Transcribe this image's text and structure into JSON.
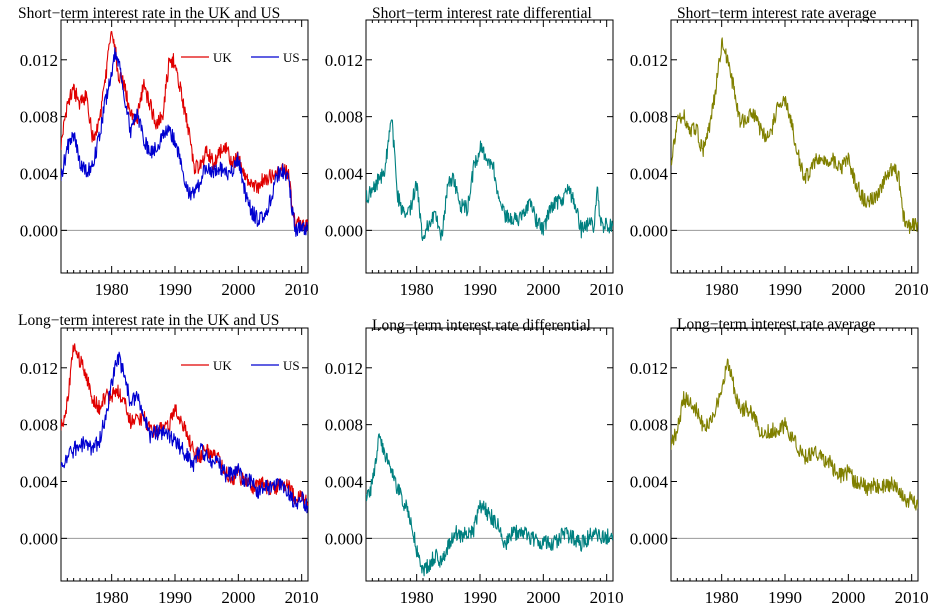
{
  "figure": {
    "panels": [
      {
        "id": "short-levels",
        "title": "Short−term interest rate in the UK and US"
      },
      {
        "id": "short-diff",
        "title": "Short−term interest rate differential"
      },
      {
        "id": "short-avg",
        "title": "Short−term interest rate average"
      },
      {
        "id": "long-levels",
        "title": "Long−term interest rate in the UK and US"
      },
      {
        "id": "long-diff",
        "title": "Long−term interest rate differential"
      },
      {
        "id": "long-avg",
        "title": "Long−term interest rate average"
      }
    ],
    "colors": {
      "uk": "#e00000",
      "us": "#0000d0",
      "diff": "#008080",
      "avg": "#808000",
      "zero": "#999999"
    }
  },
  "chart_data": [
    {
      "type": "line",
      "title": "Short−term interest rate in the UK and US",
      "xlim": [
        1972,
        2011
      ],
      "ylim": [
        -0.003,
        0.0148
      ],
      "xticks": [
        1980,
        1990,
        2000,
        2010
      ],
      "yticks": [
        0.0,
        0.004,
        0.008,
        0.012
      ],
      "ytick_labels": [
        "0.000",
        "0.004",
        "0.008",
        "0.012"
      ],
      "legend": "top-right",
      "series": [
        {
          "name": "UK",
          "x": [
            1972,
            1973,
            1974,
            1975,
            1976,
            1977,
            1978,
            1979,
            1980,
            1980.5,
            1981,
            1982,
            1983,
            1984,
            1985,
            1986,
            1987,
            1988,
            1989,
            1990,
            1991,
            1992,
            1993,
            1994,
            1995,
            1996,
            1997,
            1998,
            1999,
            2000,
            2001,
            2002,
            2003,
            2004,
            2005,
            2006,
            2007,
            2008,
            2008.5,
            2009,
            2010,
            2011
          ],
          "y": [
            0.006,
            0.009,
            0.0098,
            0.009,
            0.0095,
            0.0065,
            0.0075,
            0.0105,
            0.0143,
            0.013,
            0.011,
            0.0102,
            0.008,
            0.0078,
            0.0102,
            0.0089,
            0.0075,
            0.008,
            0.0116,
            0.012,
            0.0095,
            0.0075,
            0.0045,
            0.0045,
            0.0055,
            0.0048,
            0.0055,
            0.0058,
            0.0047,
            0.0051,
            0.0041,
            0.0033,
            0.003,
            0.0036,
            0.0038,
            0.0038,
            0.0047,
            0.0038,
            0.0015,
            0.0005,
            0.0004,
            0.0004
          ]
        },
        {
          "name": "US",
          "x": [
            1972,
            1973,
            1974,
            1975,
            1976,
            1977,
            1978,
            1979,
            1980,
            1980.5,
            1981,
            1982,
            1983,
            1984,
            1985,
            1986,
            1987,
            1988,
            1989,
            1990,
            1991,
            1992,
            1993,
            1994,
            1995,
            1996,
            1997,
            1998,
            1999,
            2000,
            2001,
            2002,
            2003,
            2004,
            2005,
            2006,
            2007,
            2008,
            2008.5,
            2009,
            2010,
            2011
          ],
          "y": [
            0.0038,
            0.0058,
            0.0068,
            0.0048,
            0.0042,
            0.0045,
            0.0065,
            0.009,
            0.011,
            0.0125,
            0.012,
            0.0095,
            0.007,
            0.0082,
            0.0065,
            0.0055,
            0.0058,
            0.0065,
            0.0072,
            0.0062,
            0.0045,
            0.0028,
            0.0025,
            0.0035,
            0.0046,
            0.0042,
            0.0043,
            0.004,
            0.0042,
            0.005,
            0.0028,
            0.0014,
            0.0008,
            0.0008,
            0.002,
            0.0038,
            0.0042,
            0.0035,
            0.0015,
            0.0001,
            0.0001,
            0.0001
          ]
        }
      ]
    },
    {
      "type": "line",
      "title": "Short−term interest rate differential",
      "xlim": [
        1972,
        2011
      ],
      "ylim": [
        -0.003,
        0.0148
      ],
      "xticks": [
        1980,
        1990,
        2000,
        2010
      ],
      "yticks": [
        0.0,
        0.004,
        0.008,
        0.012
      ],
      "ytick_labels": [
        "0.000",
        "0.004",
        "0.008",
        "0.012"
      ],
      "series": [
        {
          "name": "",
          "x": [
            1972,
            1973,
            1974,
            1975,
            1976,
            1977,
            1978,
            1979,
            1980,
            1981,
            1982,
            1983,
            1984,
            1985,
            1986,
            1987,
            1988,
            1989,
            1990,
            1991,
            1992,
            1993,
            1994,
            1995,
            1996,
            1997,
            1998,
            1999,
            2000,
            2001,
            2002,
            2003,
            2004,
            2005,
            2006,
            2007,
            2008,
            2008.5,
            2009,
            2010,
            2011
          ],
          "y": [
            0.0022,
            0.003,
            0.0035,
            0.0042,
            0.0082,
            0.0025,
            0.001,
            0.0015,
            0.0033,
            -0.001,
            0.0007,
            0.001,
            -0.0005,
            0.0037,
            0.0034,
            0.0017,
            0.0015,
            0.0044,
            0.0058,
            0.005,
            0.0047,
            0.002,
            0.001,
            0.0009,
            0.0006,
            0.0012,
            0.0018,
            0.0005,
            0.0001,
            0.0013,
            0.0019,
            0.0022,
            0.0028,
            0.0018,
            0.0,
            0.0005,
            0.0003,
            0.0032,
            0.0004,
            0.0003,
            0.0003
          ]
        }
      ]
    },
    {
      "type": "line",
      "title": "Short−term interest rate average",
      "xlim": [
        1972,
        2011
      ],
      "ylim": [
        -0.003,
        0.0148
      ],
      "xticks": [
        1980,
        1990,
        2000,
        2010
      ],
      "yticks": [
        0.0,
        0.004,
        0.008,
        0.012
      ],
      "ytick_labels": [
        "0.000",
        "0.004",
        "0.008",
        "0.012"
      ],
      "series": [
        {
          "name": "",
          "x": [
            1972,
            1973,
            1974,
            1975,
            1976,
            1977,
            1978,
            1979,
            1980,
            1981,
            1982,
            1983,
            1984,
            1985,
            1986,
            1987,
            1988,
            1989,
            1990,
            1991,
            1992,
            1993,
            1994,
            1995,
            1996,
            1997,
            1998,
            1999,
            2000,
            2001,
            2002,
            2003,
            2004,
            2005,
            2006,
            2007,
            2008,
            2008.5,
            2009,
            2010,
            2011
          ],
          "y": [
            0.0048,
            0.0078,
            0.0082,
            0.0068,
            0.0072,
            0.0055,
            0.007,
            0.0098,
            0.0132,
            0.0118,
            0.0098,
            0.0075,
            0.008,
            0.0082,
            0.0072,
            0.0066,
            0.0072,
            0.0092,
            0.0092,
            0.0075,
            0.0055,
            0.0036,
            0.0042,
            0.005,
            0.0047,
            0.0049,
            0.0049,
            0.0044,
            0.0051,
            0.0036,
            0.0025,
            0.0019,
            0.0022,
            0.0029,
            0.0038,
            0.0044,
            0.0037,
            0.0015,
            0.0003,
            0.0003,
            0.0004
          ]
        }
      ]
    },
    {
      "type": "line",
      "title": "Long−term interest rate in the UK and US",
      "xlim": [
        1972,
        2011
      ],
      "ylim": [
        -0.003,
        0.0148
      ],
      "xticks": [
        1980,
        1990,
        2000,
        2010
      ],
      "yticks": [
        0.0,
        0.004,
        0.008,
        0.012
      ],
      "ytick_labels": [
        "0.000",
        "0.004",
        "0.008",
        "0.012"
      ],
      "legend": "top-right",
      "series": [
        {
          "name": "UK",
          "x": [
            1972,
            1973,
            1974,
            1975,
            1976,
            1977,
            1978,
            1979,
            1980,
            1981,
            1982,
            1983,
            1984,
            1985,
            1986,
            1987,
            1988,
            1989,
            1990,
            1991,
            1992,
            1993,
            1994,
            1995,
            1996,
            1997,
            1998,
            1999,
            2000,
            2001,
            2002,
            2003,
            2004,
            2005,
            2006,
            2007,
            2008,
            2009,
            2010,
            2011
          ],
          "y": [
            0.0078,
            0.0095,
            0.0135,
            0.0125,
            0.0115,
            0.0098,
            0.0092,
            0.01,
            0.01,
            0.0105,
            0.0095,
            0.0082,
            0.0082,
            0.0085,
            0.0078,
            0.0075,
            0.0078,
            0.0078,
            0.0092,
            0.0082,
            0.0072,
            0.006,
            0.0058,
            0.0062,
            0.0058,
            0.0055,
            0.0046,
            0.0042,
            0.0046,
            0.0038,
            0.0037,
            0.0036,
            0.0038,
            0.0034,
            0.0035,
            0.0038,
            0.0036,
            0.0027,
            0.0029,
            0.0025
          ]
        },
        {
          "name": "US",
          "x": [
            1972,
            1973,
            1974,
            1975,
            1976,
            1977,
            1978,
            1979,
            1980,
            1981,
            1982,
            1983,
            1984,
            1985,
            1986,
            1987,
            1988,
            1989,
            1990,
            1991,
            1992,
            1993,
            1994,
            1995,
            1996,
            1997,
            1998,
            1999,
            2000,
            2001,
            2002,
            2003,
            2004,
            2005,
            2006,
            2007,
            2008,
            2009,
            2010,
            2011
          ],
          "y": [
            0.0052,
            0.0057,
            0.0062,
            0.0067,
            0.0065,
            0.0063,
            0.0068,
            0.0085,
            0.0108,
            0.0128,
            0.0115,
            0.0095,
            0.0102,
            0.0088,
            0.0072,
            0.0075,
            0.0074,
            0.0072,
            0.0068,
            0.0063,
            0.0058,
            0.0052,
            0.0062,
            0.0058,
            0.0054,
            0.0052,
            0.0045,
            0.0045,
            0.0048,
            0.0041,
            0.004,
            0.0033,
            0.0036,
            0.0035,
            0.0039,
            0.0038,
            0.0031,
            0.0025,
            0.0028,
            0.0022
          ]
        }
      ]
    },
    {
      "type": "line",
      "title": "Long−term interest rate differential",
      "xlim": [
        1972,
        2011
      ],
      "ylim": [
        -0.003,
        0.0148
      ],
      "xticks": [
        1980,
        1990,
        2000,
        2010
      ],
      "yticks": [
        0.0,
        0.004,
        0.008,
        0.012
      ],
      "ytick_labels": [
        "0.000",
        "0.004",
        "0.008",
        "0.012"
      ],
      "series": [
        {
          "name": "",
          "x": [
            1972,
            1973,
            1974,
            1975,
            1976,
            1977,
            1978,
            1979,
            1980,
            1981,
            1982,
            1983,
            1984,
            1985,
            1986,
            1987,
            1988,
            1989,
            1990,
            1991,
            1992,
            1993,
            1994,
            1995,
            1996,
            1997,
            1998,
            1999,
            2000,
            2001,
            2002,
            2003,
            2004,
            2005,
            2006,
            2007,
            2008,
            2009,
            2010,
            2011
          ],
          "y": [
            0.0026,
            0.0038,
            0.0072,
            0.0058,
            0.0048,
            0.0035,
            0.0025,
            0.0015,
            -0.0008,
            -0.0022,
            -0.0018,
            -0.0012,
            -0.0018,
            -0.0005,
            0.0005,
            0.0,
            0.0005,
            0.0006,
            0.0024,
            0.0019,
            0.0014,
            0.0008,
            -0.0004,
            0.0004,
            0.0004,
            0.0003,
            0.0001,
            -0.0003,
            -0.0002,
            -0.0003,
            -0.0003,
            0.0003,
            0.0002,
            -0.0001,
            -0.0004,
            0.0,
            0.0005,
            0.0002,
            0.0001,
            0.0003
          ]
        }
      ]
    },
    {
      "type": "line",
      "title": "Long−term interest rate average",
      "xlim": [
        1972,
        2011
      ],
      "ylim": [
        -0.003,
        0.0148
      ],
      "xticks": [
        1980,
        1990,
        2000,
        2010
      ],
      "yticks": [
        0.0,
        0.004,
        0.008,
        0.012
      ],
      "ytick_labels": [
        "0.000",
        "0.004",
        "0.008",
        "0.012"
      ],
      "series": [
        {
          "name": "",
          "x": [
            1972,
            1973,
            1974,
            1975,
            1976,
            1977,
            1978,
            1979,
            1980,
            1981,
            1982,
            1983,
            1984,
            1985,
            1986,
            1987,
            1988,
            1989,
            1990,
            1991,
            1992,
            1993,
            1994,
            1995,
            1996,
            1997,
            1998,
            1999,
            2000,
            2001,
            2002,
            2003,
            2004,
            2005,
            2006,
            2007,
            2008,
            2009,
            2010,
            2011
          ],
          "y": [
            0.0065,
            0.0076,
            0.0098,
            0.0096,
            0.009,
            0.008,
            0.008,
            0.0092,
            0.0104,
            0.0124,
            0.0105,
            0.0089,
            0.0092,
            0.0086,
            0.0075,
            0.0075,
            0.0076,
            0.0075,
            0.008,
            0.0072,
            0.0065,
            0.0056,
            0.006,
            0.006,
            0.0056,
            0.0054,
            0.0046,
            0.0044,
            0.0047,
            0.004,
            0.0039,
            0.0035,
            0.0037,
            0.0035,
            0.0037,
            0.0038,
            0.0033,
            0.0026,
            0.0028,
            0.0021
          ]
        }
      ]
    }
  ]
}
